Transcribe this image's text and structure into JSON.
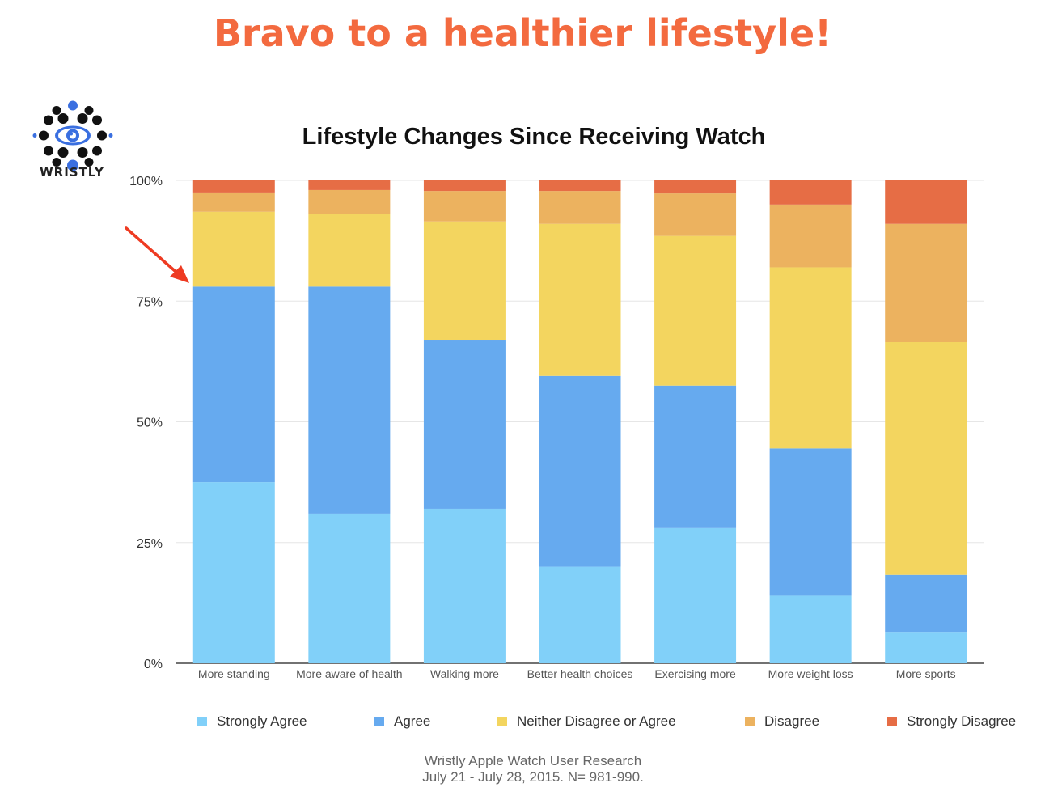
{
  "headline": "Bravo to a healthier lifestyle!",
  "brand": {
    "name": "WRISTLY",
    "dot_color": "#111111",
    "accent_color": "#3a6fe0"
  },
  "chart_data": {
    "type": "bar",
    "stacked": true,
    "title": "Lifestyle Changes Since Receiving Watch",
    "categories": [
      "More standing",
      "More aware of health",
      "Walking more",
      "Better health choices",
      "Exercising more",
      "More weight loss",
      "More sports"
    ],
    "ylim": [
      0,
      100
    ],
    "yticks": [
      "0%",
      "25%",
      "50%",
      "75%",
      "100%"
    ],
    "ytick_values": [
      0,
      25,
      50,
      75,
      100
    ],
    "series": [
      {
        "name": "Strongly Agree",
        "color": "#81d0f9",
        "values": [
          37.5,
          31,
          32,
          20,
          28,
          14,
          6.5
        ]
      },
      {
        "name": "Agree",
        "color": "#66aaef",
        "values": [
          40.5,
          47,
          35,
          39.5,
          29.5,
          30.5,
          11.8
        ]
      },
      {
        "name": "Neither Disagree or Agree",
        "color": "#f3d55f",
        "values": [
          15.5,
          15,
          24.5,
          31.5,
          31,
          37.5,
          48.2
        ]
      },
      {
        "name": "Disagree",
        "color": "#ecb25f",
        "values": [
          4,
          5,
          6.3,
          6.8,
          8.8,
          13,
          24.5
        ]
      },
      {
        "name": "Strongly Disagree",
        "color": "#e66d45",
        "values": [
          2.5,
          2,
          2.2,
          2.2,
          2.7,
          5,
          9
        ]
      }
    ]
  },
  "source": {
    "line1": "Wristly Apple Watch User Research",
    "line2": "July 21 - July 28, 2015.  N= 981-990."
  },
  "arrow_color": "#ee3b22"
}
